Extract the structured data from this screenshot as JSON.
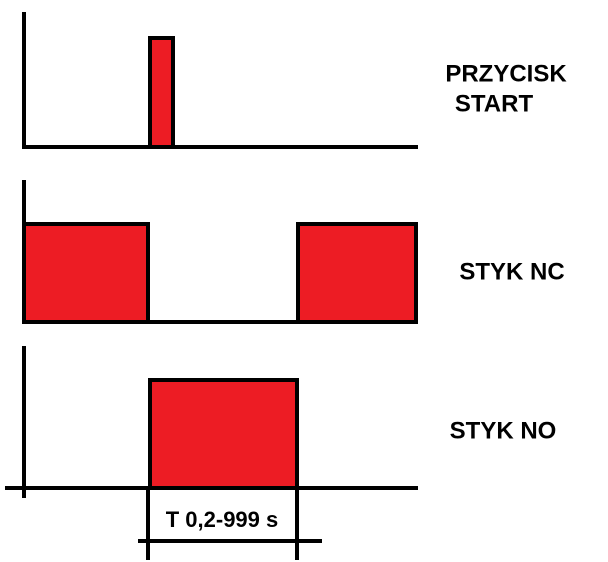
{
  "rows": [
    {
      "label_lines": [
        "PRZYCISK",
        "START"
      ]
    },
    {
      "label": "STYK NC"
    },
    {
      "label": "STYK NO"
    }
  ],
  "time_label": "T 0,2-999 s"
}
